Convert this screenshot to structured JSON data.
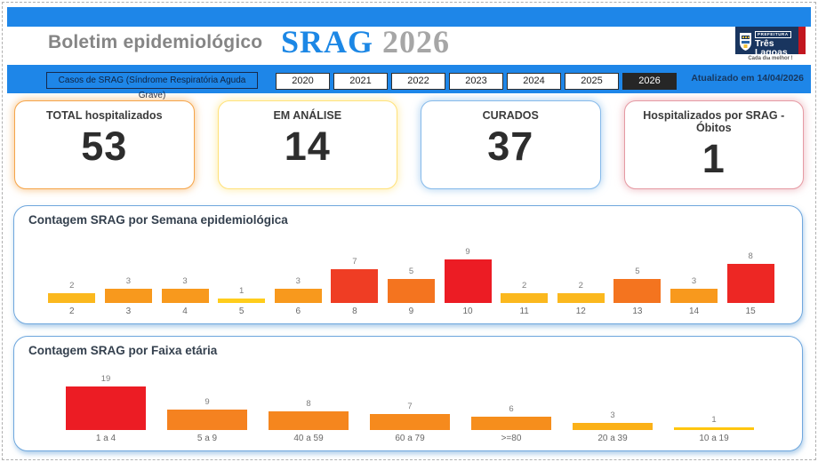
{
  "header": {
    "title": "Boletim epidemiológico",
    "brand": "SRAG",
    "brand_year": "2026",
    "updated": "Atualizado em 14/04/2026",
    "filter_label": "Casos de SRAG (Síndrome Respiratória Aguda Grave)",
    "logo": {
      "top": "PREFEITURA",
      "name1": "Três",
      "name2": "Lagoas",
      "tagline": "Cada dia melhor !"
    }
  },
  "year_tabs": {
    "options": [
      "2020",
      "2021",
      "2022",
      "2023",
      "2024",
      "2025",
      "2026"
    ],
    "selected": "2026"
  },
  "kpis": [
    {
      "label": "TOTAL hospitalizados",
      "value": "53",
      "accent": "#F5A54A"
    },
    {
      "label": "EM ANÁLISE",
      "value": "14",
      "accent": "#FFE27A"
    },
    {
      "label": "CURADOS",
      "value": "37",
      "accent": "#86BAEA"
    },
    {
      "label": "Hospitalizados por SRAG - Óbitos",
      "value": "1",
      "accent": "#E59AA3"
    }
  ],
  "chart_data": [
    {
      "type": "bar",
      "title": "Contagem SRAG por Semana epidemiológica",
      "categories": [
        "2",
        "3",
        "4",
        "5",
        "6",
        "8",
        "9",
        "10",
        "11",
        "12",
        "13",
        "14",
        "15"
      ],
      "values": [
        2,
        3,
        3,
        1,
        3,
        7,
        5,
        9,
        2,
        2,
        5,
        3,
        8
      ],
      "bar_colors": [
        "#FBB81E",
        "#F8991D",
        "#F8991D",
        "#FFCD1C",
        "#F8991D",
        "#EF3D24",
        "#F4741F",
        "#EC1C24",
        "#FBB81E",
        "#FBB81E",
        "#F4741F",
        "#F8991D",
        "#ED2724"
      ],
      "xlabel": "",
      "ylabel": "",
      "ylim": [
        0,
        9
      ],
      "data_labels": true,
      "grid": false,
      "legend": false
    },
    {
      "type": "bar",
      "title": "Contagem SRAG por Faixa etária",
      "categories": [
        "1 a 4",
        "5 a 9",
        "40 a 59",
        "60 a 79",
        ">=80",
        "20 a 39",
        "10 a 19"
      ],
      "values": [
        19,
        9,
        8,
        7,
        6,
        3,
        1
      ],
      "bar_colors": [
        "#EC1C24",
        "#F58220",
        "#F5861E",
        "#F68A1D",
        "#F68E1C",
        "#FBB118",
        "#FFC60F"
      ],
      "xlabel": "",
      "ylabel": "",
      "ylim": [
        0,
        19
      ],
      "data_labels": true,
      "grid": false,
      "legend": false
    }
  ]
}
